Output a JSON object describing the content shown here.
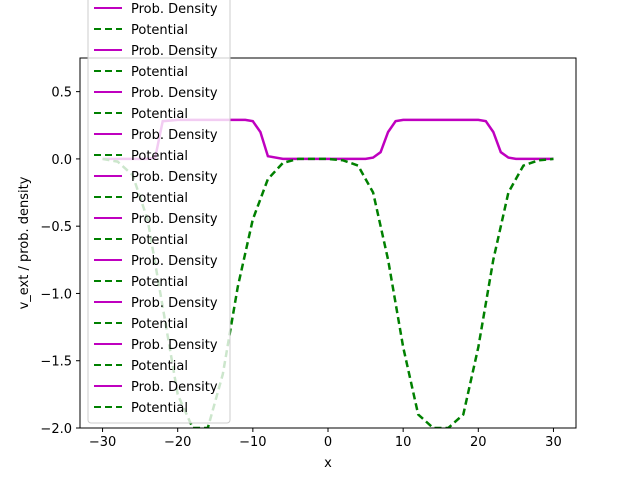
{
  "chart_data": {
    "type": "line",
    "title": "",
    "xlabel": "x",
    "ylabel": "v_ext / prob. density",
    "xlim": [
      -33,
      33
    ],
    "ylim": [
      -2.0,
      0.75
    ],
    "xticks": [
      -30,
      -20,
      -10,
      0,
      10,
      20,
      30
    ],
    "yticks": [
      -2.0,
      -1.5,
      -1.0,
      -0.5,
      0.0,
      0.5
    ],
    "xtick_labels": [
      "−30",
      "−20",
      "−10",
      "0",
      "10",
      "20",
      "30"
    ],
    "ytick_labels": [
      "−2.0",
      "−1.5",
      "−1.0",
      "−0.5",
      "0.0",
      "0.5"
    ],
    "grid": false,
    "legend_placement": "top-left",
    "series": [
      {
        "name": "Prob. Density",
        "color": "#bf00bf",
        "linestyle": "solid",
        "x": [
          -30,
          -26,
          -24,
          -23,
          -22,
          -20,
          -17,
          -14,
          -12,
          -11,
          -10,
          -9,
          -8,
          -6,
          -3,
          0,
          3,
          5,
          6,
          7,
          8,
          9,
          10,
          12,
          15,
          18,
          20,
          21,
          22,
          23,
          24,
          25,
          27,
          30
        ],
        "y": [
          0.0,
          0.0,
          0.0,
          0.01,
          0.28,
          0.29,
          0.29,
          0.29,
          0.29,
          0.29,
          0.28,
          0.2,
          0.02,
          0.0,
          0.0,
          0.0,
          0.0,
          0.0,
          0.01,
          0.05,
          0.2,
          0.28,
          0.29,
          0.29,
          0.29,
          0.29,
          0.29,
          0.28,
          0.2,
          0.05,
          0.01,
          0.0,
          0.0,
          0.0
        ]
      },
      {
        "name": "Potential",
        "color": "#008000",
        "linestyle": "dashed",
        "x": [
          -30,
          -28,
          -26,
          -24,
          -22,
          -20,
          -18,
          -16,
          -14,
          -12,
          -10,
          -8,
          -6,
          -4,
          -2,
          0,
          2,
          4,
          6,
          8,
          10,
          12,
          14,
          16,
          18,
          20,
          22,
          24,
          26,
          28,
          30
        ],
        "y": [
          0.0,
          -0.02,
          -0.12,
          -0.45,
          -1.1,
          -1.75,
          -2.0,
          -2.0,
          -1.6,
          -0.95,
          -0.45,
          -0.15,
          -0.03,
          0.0,
          0.0,
          0.0,
          -0.01,
          -0.05,
          -0.25,
          -0.75,
          -1.4,
          -1.9,
          -2.0,
          -2.0,
          -1.9,
          -1.4,
          -0.75,
          -0.25,
          -0.05,
          -0.01,
          0.0
        ]
      }
    ],
    "legend_entries": [
      "Prob. Density",
      "Potential",
      "Prob. Density",
      "Potential",
      "Prob. Density",
      "Potential",
      "Prob. Density",
      "Potential",
      "Prob. Density",
      "Potential",
      "Prob. Density",
      "Potential",
      "Prob. Density",
      "Potential",
      "Prob. Density",
      "Potential",
      "Prob. Density",
      "Potential",
      "Prob. Density",
      "Potential"
    ]
  }
}
